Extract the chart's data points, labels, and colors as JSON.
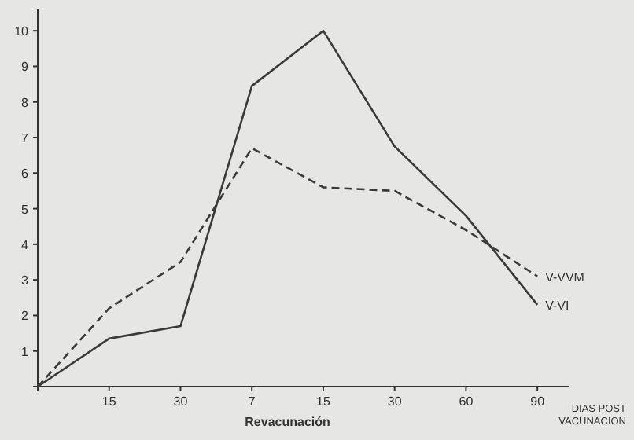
{
  "chart_data": {
    "type": "line",
    "xlabel": "DIAS POST VACUNACION",
    "annotations": [
      "Revacunación"
    ],
    "ylim": [
      0,
      10.6
    ],
    "yticks": [
      {
        "value": 0,
        "label": null
      },
      1,
      2,
      3,
      4,
      5,
      6,
      7,
      8,
      9,
      10
    ],
    "categories": [
      null,
      "15",
      "30",
      "7",
      "15",
      "30",
      "60",
      "90"
    ],
    "series": [
      {
        "name": "V-VI",
        "color": "#3a3a3a",
        "line_style": "solid",
        "values": [
          0,
          1.35,
          1.7,
          8.45,
          10,
          6.75,
          4.8,
          2.3
        ]
      },
      {
        "name": "V-VVM",
        "color": "#3a3a3a",
        "line_style": "dashed",
        "values": [
          0,
          2.2,
          3.5,
          6.7,
          5.6,
          5.5,
          4.4,
          3.1
        ]
      }
    ]
  }
}
